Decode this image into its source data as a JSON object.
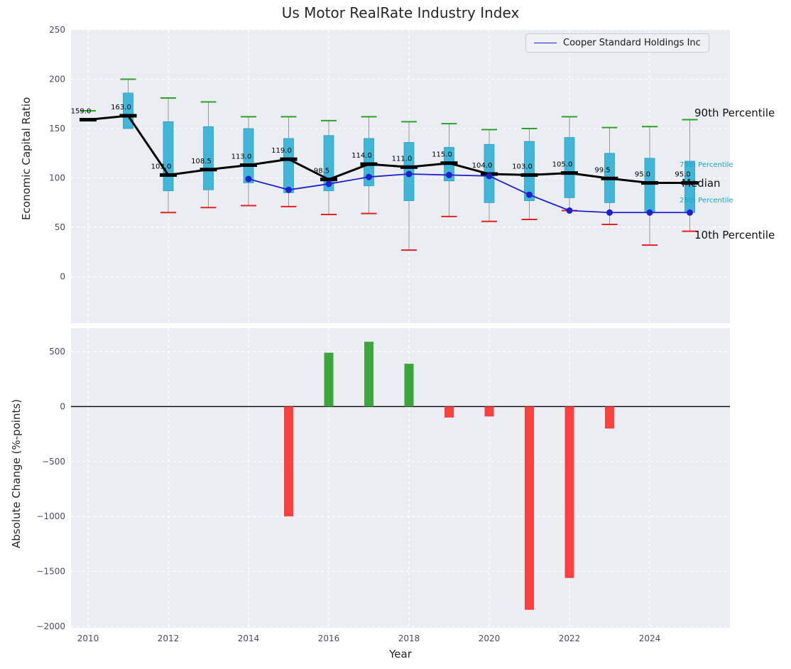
{
  "title": "Us Motor RealRate Industry Index",
  "legend": {
    "label": "Cooper Standard Holdings Inc"
  },
  "axis": {
    "top_ylabel": "Economic Capital Ratio",
    "bottom_ylabel": "Absolute Change (%-points)",
    "xlabel": "Year"
  },
  "annotations": {
    "p90": "90th Percentile",
    "p75": "75th Percentile",
    "median": "Median",
    "p25": "25th Percentile",
    "p10": "10th Percentile"
  },
  "colors": {
    "axes_background": "#eaeef2",
    "grid": "#ffffff",
    "box_fill": "#42b6d9",
    "box_edge": "#2d9fc4",
    "whisker": "#999999",
    "p90_cap": "#2ca02c",
    "p10_cap": "#e62020",
    "median_line": "#000000",
    "cooper_line": "#2020cc",
    "cyan_annotation": "#1ba3c6",
    "black_annotation": "#111111",
    "bar_positive": "#3da53d",
    "bar_negative": "#fb4040",
    "tick_label": "#4a4a64",
    "zero_line": "#000000"
  },
  "chart_data": [
    {
      "type": "box-percentile-line",
      "title": "Us Motor RealRate Industry Index",
      "ylabel": "Economic Capital Ratio",
      "ylim": [
        -47,
        250
      ],
      "yticks": [
        0,
        50,
        100,
        150,
        200,
        250
      ],
      "ytick_labels": [
        "0",
        "50",
        "100",
        "150",
        "200",
        "250"
      ],
      "xticks": [
        2010,
        2012,
        2014,
        2016,
        2018,
        2020,
        2022,
        2024
      ],
      "xtick_labels": [
        "2010",
        "2012",
        "2014",
        "2016",
        "2018",
        "2020",
        "2022",
        "2024"
      ],
      "years": [
        2010,
        2011,
        2012,
        2013,
        2014,
        2015,
        2016,
        2017,
        2018,
        2019,
        2020,
        2021,
        2022,
        2023,
        2024,
        2025
      ],
      "median": [
        159.0,
        163.0,
        103.0,
        108.5,
        113.0,
        119.0,
        98.5,
        114.0,
        111.0,
        115.0,
        104.0,
        103.0,
        105.0,
        99.5,
        95.0,
        95.0
      ],
      "median_labels": [
        "159.0",
        "163.0",
        "103.0",
        "108.5",
        "113.0",
        "119.0",
        "98.5",
        "114.0",
        "111.0",
        "115.0",
        "104.0",
        "103.0",
        "105.0",
        "99.5",
        "95.0",
        "95.0"
      ],
      "p90": [
        168,
        200,
        181,
        177,
        162,
        162,
        158,
        162,
        157,
        155,
        149,
        150,
        162,
        151,
        152,
        159
      ],
      "p75": [
        null,
        186,
        157,
        152,
        150,
        140,
        143,
        140,
        136,
        131,
        134,
        137,
        141,
        125,
        120,
        117
      ],
      "p25": [
        null,
        150,
        87,
        88,
        95,
        85,
        87,
        92,
        77,
        97,
        75,
        77,
        80,
        75,
        65,
        65
      ],
      "p10": [
        null,
        null,
        65,
        70,
        72,
        71,
        63,
        64,
        27,
        61,
        56,
        58,
        67,
        53,
        32,
        46
      ],
      "series": [
        {
          "name": "Cooper Standard Holdings Inc",
          "values": [
            null,
            null,
            null,
            null,
            99,
            88,
            94,
            101,
            104,
            103,
            102,
            83,
            67,
            65,
            65,
            65
          ]
        }
      ],
      "legend_entries": [
        "Cooper Standard Holdings Inc"
      ],
      "legend_position": "upper right",
      "grid": true
    },
    {
      "type": "bar",
      "ylabel": "Absolute Change (%-points)",
      "xlabel": "Year",
      "ylim": [
        -2014,
        714
      ],
      "yticks": [
        500,
        0,
        -500,
        -1000,
        -1500,
        -2000
      ],
      "ytick_labels": [
        "500",
        "0",
        "−500",
        "−1000",
        "−1500",
        "−2000"
      ],
      "years": [
        2010,
        2011,
        2012,
        2013,
        2014,
        2015,
        2016,
        2017,
        2018,
        2019,
        2020,
        2021,
        2022,
        2023,
        2024,
        2025
      ],
      "values": [
        null,
        null,
        null,
        null,
        null,
        -1000,
        490,
        590,
        390,
        -100,
        -90,
        -1850,
        -1560,
        -200,
        null,
        null
      ],
      "grid": true
    }
  ]
}
